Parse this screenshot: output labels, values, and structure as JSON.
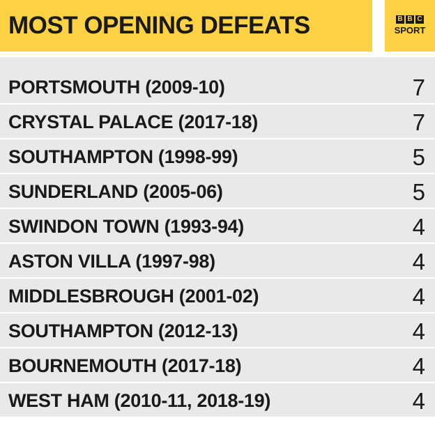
{
  "header": {
    "title": "MOST OPENING DEFEATS",
    "logo_letters": [
      "B",
      "B",
      "C"
    ],
    "logo_word": "SPORT"
  },
  "chart_data": {
    "type": "table",
    "title": "MOST OPENING DEFEATS",
    "rows": [
      {
        "label": "PORTSMOUTH (2009-10)",
        "value": "7"
      },
      {
        "label": "CRYSTAL PALACE (2017-18)",
        "value": "7"
      },
      {
        "label": "SOUTHAMPTON (1998-99)",
        "value": "5"
      },
      {
        "label": "SUNDERLAND (2005-06)",
        "value": "5"
      },
      {
        "label": "SWINDON TOWN (1993-94)",
        "value": "4"
      },
      {
        "label": "ASTON VILLA (1997-98)",
        "value": "4"
      },
      {
        "label": "MIDDLESBROUGH (2001-02)",
        "value": "4"
      },
      {
        "label": "SOUTHAMPTON (2012-13)",
        "value": "4"
      },
      {
        "label": "BOURNEMOUTH (2017-18)",
        "value": "4"
      },
      {
        "label": "WEST HAM (2010-11, 2018-19)",
        "value": "4"
      }
    ]
  },
  "colors": {
    "header_bg": "#fcd144",
    "row_bg": "#e9e9e9",
    "text": "#1a1a1a"
  }
}
